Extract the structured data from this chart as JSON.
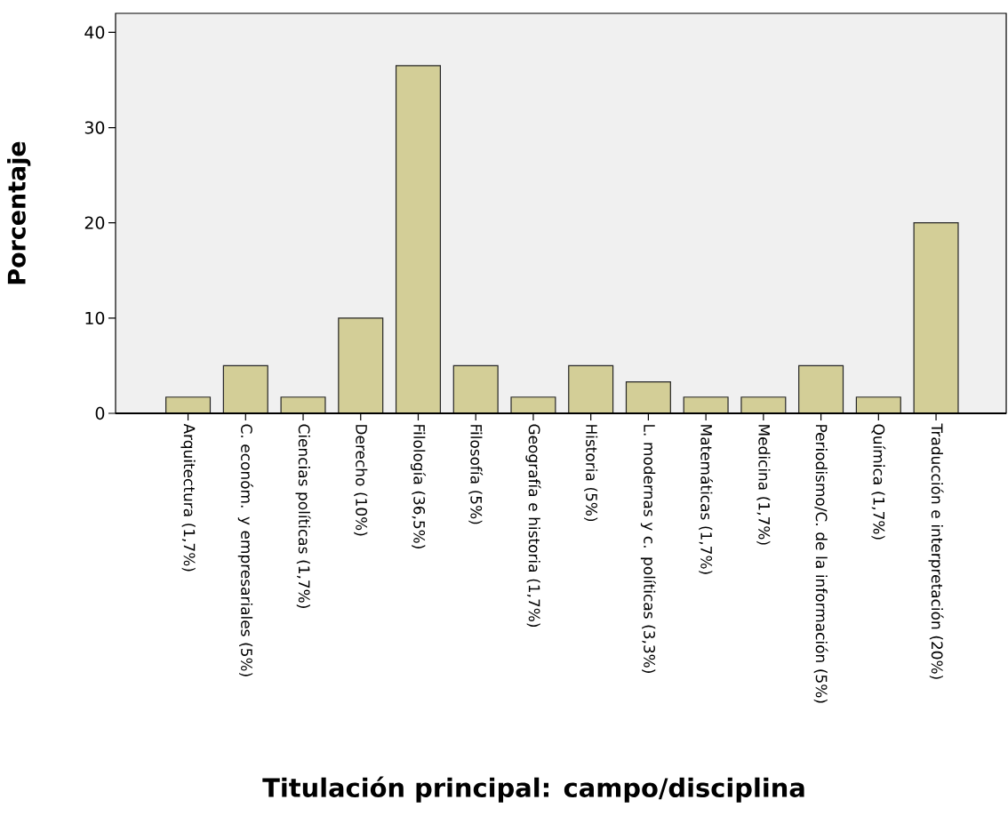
{
  "chart_data": {
    "type": "bar",
    "xlabel": "Titulación principal: campo/disciplina",
    "ylabel": "Porcentaje",
    "categories": [
      "Arquitectura (1,7%)",
      "C. económ. y empresariales (5%)",
      "Ciencias políticas (1,7%)",
      "Derecho (10%)",
      "Filología (36,5%)",
      "Filosofía (5%)",
      "Geografía e historia (1,7%)",
      "Historia (5%)",
      "L. modernas y c. políticas (3,3%)",
      "Matemáticas (1,7%)",
      "Medicina (1,7%)",
      "Periodismo/C. de la información (5%)",
      "Química (1,7%)",
      "Traducción e interpretación (20%)"
    ],
    "values": [
      1.7,
      5,
      1.7,
      10,
      36.5,
      5,
      1.7,
      5,
      3.3,
      1.7,
      1.7,
      5,
      1.7,
      20
    ],
    "color": "#d3ce97",
    "ylim": [
      0,
      42
    ],
    "yticks": [
      0,
      10,
      20,
      30,
      40
    ],
    "grid": false
  }
}
